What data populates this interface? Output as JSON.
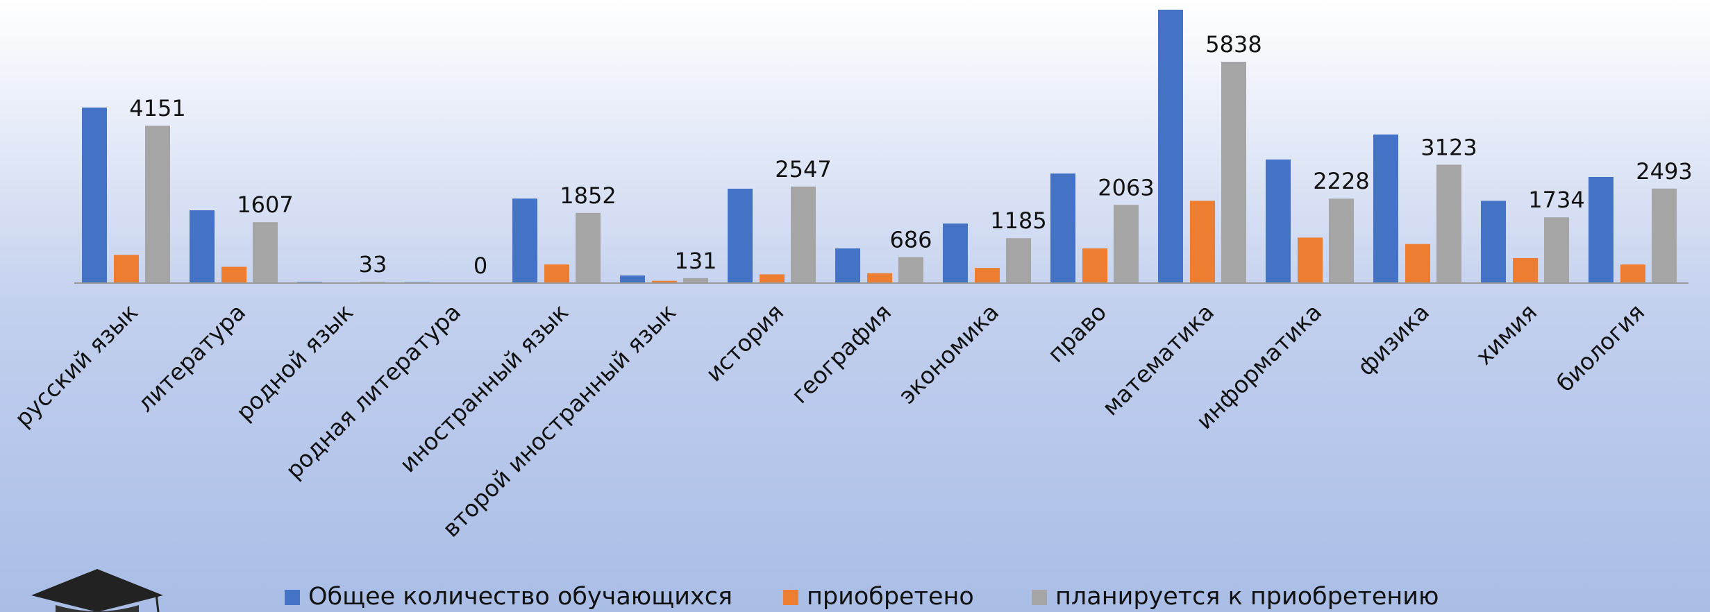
{
  "chart_data": {
    "type": "bar",
    "categories": [
      "русский язык",
      "литература",
      "родной язык",
      "родная литература",
      "иностранный язык",
      "второй иностранный язык",
      "история",
      "география",
      "экономика",
      "право",
      "математика",
      "информатика",
      "физика",
      "химия",
      "биология"
    ],
    "series": [
      {
        "name": "Общее количество обучающихся",
        "color": "#4472c4",
        "values": [
          4630,
          1920,
          30,
          25,
          2230,
          200,
          2490,
          915,
          1570,
          2890,
          7210,
          3260,
          3920,
          2170,
          2800
        ]
      },
      {
        "name": "приобретено",
        "color": "#ed7d31",
        "values": [
          745,
          430,
          0,
          0,
          490,
          60,
          230,
          260,
          400,
          915,
          2170,
          1200,
          1030,
          660,
          490
        ]
      },
      {
        "name": "планируется к приобретению",
        "color": "#a5a5a5",
        "values": [
          4151,
          1607,
          33,
          0,
          1852,
          131,
          2547,
          686,
          1185,
          2063,
          5838,
          2228,
          3123,
          1734,
          2493
        ],
        "show_labels": true
      }
    ],
    "legend": "bottom"
  }
}
